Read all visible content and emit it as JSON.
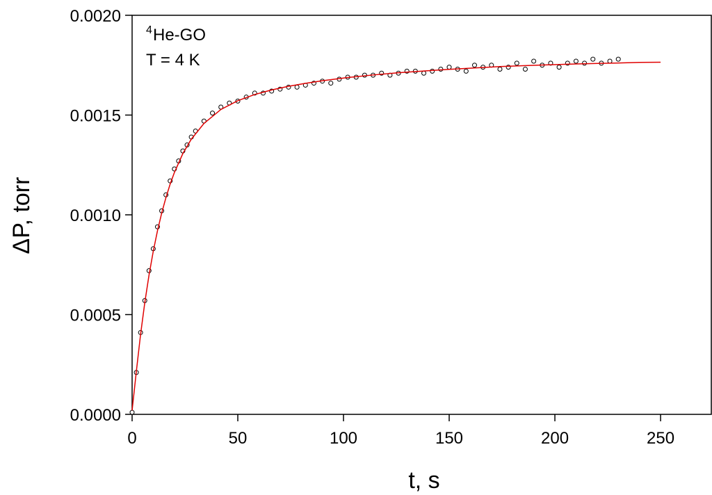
{
  "chart_data": {
    "type": "scatter",
    "xlabel": "t, s",
    "ylabel": "ΔP, torr",
    "annotations": [
      {
        "sup": "4",
        "text": "He-GO"
      },
      {
        "text": "T = 4 K"
      }
    ],
    "xlim": [
      0,
      274
    ],
    "ylim": [
      0,
      0.002
    ],
    "xticks": [
      0,
      50,
      100,
      150,
      200,
      250
    ],
    "yticks": [
      {
        "value": 0,
        "label": "0.0000"
      },
      {
        "value": 0.0005,
        "label": "0.0005"
      },
      {
        "value": 0.001,
        "label": "0.0010"
      },
      {
        "value": 0.0015,
        "label": "0.0015"
      },
      {
        "value": 0.002,
        "label": "0.0020"
      }
    ],
    "series": [
      {
        "type": "scatter",
        "color": "#000000",
        "x": [
          0,
          2,
          4,
          6,
          8,
          10,
          12,
          14,
          16,
          18,
          20,
          22,
          24,
          26,
          28,
          30,
          34,
          38,
          42,
          46,
          50,
          54,
          58,
          62,
          66,
          70,
          74,
          78,
          82,
          86,
          90,
          94,
          98,
          102,
          106,
          110,
          114,
          118,
          122,
          126,
          130,
          134,
          138,
          142,
          146,
          150,
          154,
          158,
          162,
          166,
          170,
          174,
          178,
          182,
          186,
          190,
          194,
          198,
          202,
          206,
          210,
          214,
          218,
          222,
          226,
          230
        ],
        "values": [
          1e-05,
          0.00021,
          0.00041,
          0.00057,
          0.00072,
          0.00083,
          0.00094,
          0.00102,
          0.0011,
          0.00117,
          0.00123,
          0.00127,
          0.00132,
          0.00135,
          0.00139,
          0.00142,
          0.00147,
          0.00151,
          0.00154,
          0.00156,
          0.00157,
          0.00159,
          0.00161,
          0.00161,
          0.00162,
          0.00163,
          0.00164,
          0.00164,
          0.00165,
          0.00166,
          0.00167,
          0.00166,
          0.00168,
          0.00169,
          0.00169,
          0.0017,
          0.0017,
          0.00171,
          0.0017,
          0.00171,
          0.00172,
          0.00172,
          0.00171,
          0.00172,
          0.00173,
          0.00174,
          0.00173,
          0.00172,
          0.00175,
          0.00174,
          0.00175,
          0.00173,
          0.00174,
          0.00176,
          0.00173,
          0.00177,
          0.00175,
          0.00176,
          0.00174,
          0.00176,
          0.00177,
          0.00176,
          0.00178,
          0.00176,
          0.00177,
          0.00178
        ]
      },
      {
        "type": "line",
        "color": "#e00000",
        "x": [
          0,
          2,
          4,
          6,
          8,
          10,
          12,
          14,
          16,
          18,
          20,
          24,
          28,
          34,
          42,
          50,
          58,
          66,
          74,
          82,
          90,
          102,
          114,
          126,
          138,
          150,
          162,
          174,
          186,
          198,
          210,
          222,
          230,
          240,
          250
        ],
        "values": [
          2e-05,
          0.000215,
          0.0004,
          0.00056,
          0.000698,
          0.000817,
          0.00092,
          0.001009,
          0.001086,
          0.001154,
          0.001212,
          0.001307,
          0.001379,
          0.001458,
          0.001528,
          0.001572,
          0.001603,
          0.001626,
          0.001644,
          0.001659,
          0.001672,
          0.001688,
          0.001701,
          0.001712,
          0.001721,
          0.001729,
          0.001736,
          0.001743,
          0.001748,
          0.001752,
          0.001756,
          0.001759,
          0.001761,
          0.001764,
          0.001765
        ]
      }
    ]
  }
}
